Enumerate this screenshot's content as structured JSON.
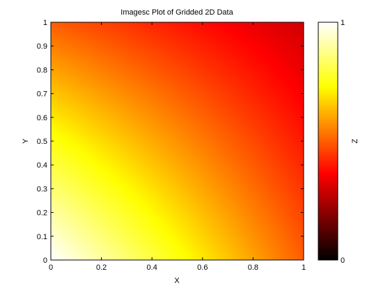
{
  "chart_data": {
    "type": "heatmap",
    "title": "Imagesc Plot of Gridded 2D Data",
    "xlabel": "X",
    "ylabel": "Y",
    "xlim": [
      0,
      1
    ],
    "ylim": [
      0,
      1
    ],
    "x_ticks": [
      "0",
      "0.2",
      "0.4",
      "0.6",
      "0.8",
      "1"
    ],
    "y_ticks": [
      "0",
      "0.1",
      "0.2",
      "0.3",
      "0.4",
      "0.5",
      "0.6",
      "0.7",
      "0.8",
      "0.9",
      "1"
    ],
    "colormap": "hot",
    "colorbar": {
      "label": "Z",
      "clim": [
        0,
        1
      ],
      "ticks": [
        "0",
        "1"
      ]
    },
    "z_corners": {
      "x0_y0": 1.0,
      "x1_y0": 0.5,
      "x0_y1": 0.5,
      "x1_y1": 0.3
    },
    "grid": false
  }
}
